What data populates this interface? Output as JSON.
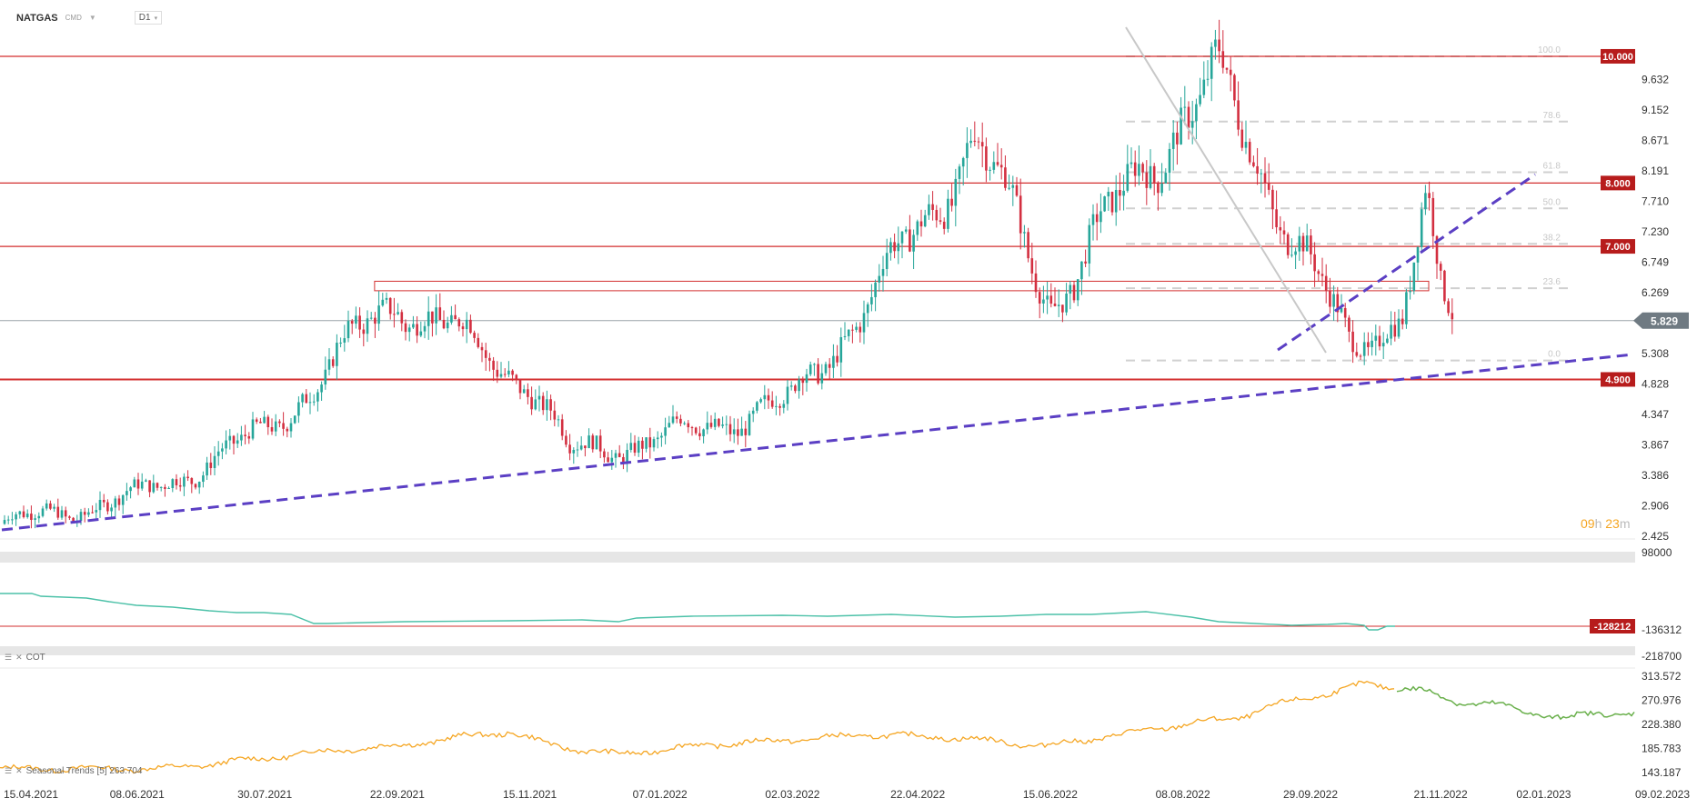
{
  "header": {
    "symbol": "NATGAS",
    "exchange": "CMD",
    "timeframe": "D1"
  },
  "timer": {
    "hours": "09",
    "hours_unit": "h",
    "minutes": "23",
    "minutes_unit": "m"
  },
  "panels": {
    "cot_label": "COT",
    "seasonal_label": "Seasonal  Trends  [5]  263.704"
  },
  "colors": {
    "bull": "#26a69a",
    "bear": "#d32f40",
    "level_line": "#d32f2f",
    "trendline": "#5b3fc4",
    "cot_line": "#4cc1a8",
    "seasonal_past": "#f5a623",
    "seasonal_future": "#6ab04c",
    "current_price_bg": "#6f7a82"
  },
  "chart_data": [
    {
      "type": "candlestick",
      "title": "NATGAS",
      "x_tick_labels": [
        "15.04.2021",
        "08.06.2021",
        "30.07.2021",
        "22.09.2021",
        "15.11.2021",
        "07.01.2022",
        "02.03.2022",
        "22.04.2022",
        "15.06.2022",
        "08.08.2022",
        "29.09.2022",
        "21.11.2022",
        "02.01.2023",
        "09.02.2023"
      ],
      "y_tick_labels": [
        "9.632",
        "9.152",
        "8.671",
        "8.191",
        "7.710",
        "7.230",
        "6.749",
        "6.269",
        "5.308",
        "4.828",
        "4.347",
        "3.867",
        "3.386",
        "2.906",
        "2.425"
      ],
      "ylim": [
        2.425,
        10.1
      ],
      "current_price": "5.829",
      "horizontal_levels": [
        "10.000",
        "8.000",
        "7.000",
        "4.900"
      ],
      "fibonacci_levels": [
        {
          "label": "100.0",
          "value": 10.0
        },
        {
          "label": "78.6",
          "value": 8.97
        },
        {
          "label": "61.8",
          "value": 8.17
        },
        {
          "label": "50.0",
          "value": 7.6
        },
        {
          "label": "38.2",
          "value": 7.04
        },
        {
          "label": "23.6",
          "value": 6.34
        },
        {
          "label": "0.0",
          "value": 5.2
        }
      ],
      "resistance_zone": [
        6.3,
        6.45
      ],
      "close_path": [
        [
          "15.04.2021",
          2.62
        ],
        [
          "08.06.2021",
          3.05
        ],
        [
          "30.07.2021",
          4.05
        ],
        [
          "22.09.2021",
          6.2
        ],
        [
          "15.11.2021",
          4.85
        ],
        [
          "01.12.2021",
          3.75
        ],
        [
          "07.01.2022",
          3.95
        ],
        [
          "02.03.2022",
          4.55
        ],
        [
          "22.04.2022",
          7.2
        ],
        [
          "15.05.2022",
          8.8
        ],
        [
          "15.06.2022",
          6.1
        ],
        [
          "08.08.2022",
          9.1
        ],
        [
          "22.08.2022",
          9.6
        ],
        [
          "29.09.2022",
          6.7
        ],
        [
          "15.10.2022",
          5.35
        ],
        [
          "05.11.2022",
          6.0
        ],
        [
          "15.11.2022",
          7.6
        ],
        [
          "21.11.2022",
          6.2
        ],
        [
          "26.11.2022",
          5.83
        ]
      ]
    },
    {
      "type": "line",
      "title": "COT",
      "y_tick_labels": [
        "98000",
        "-136312",
        "-218700"
      ],
      "marked_value": "-128212"
    },
    {
      "type": "line",
      "title": "Seasonal Trends [5]",
      "y_tick_labels": [
        "313.572",
        "270.976",
        "228.380",
        "185.783",
        "143.187"
      ],
      "ylim": [
        143.187,
        313.572
      ]
    }
  ]
}
